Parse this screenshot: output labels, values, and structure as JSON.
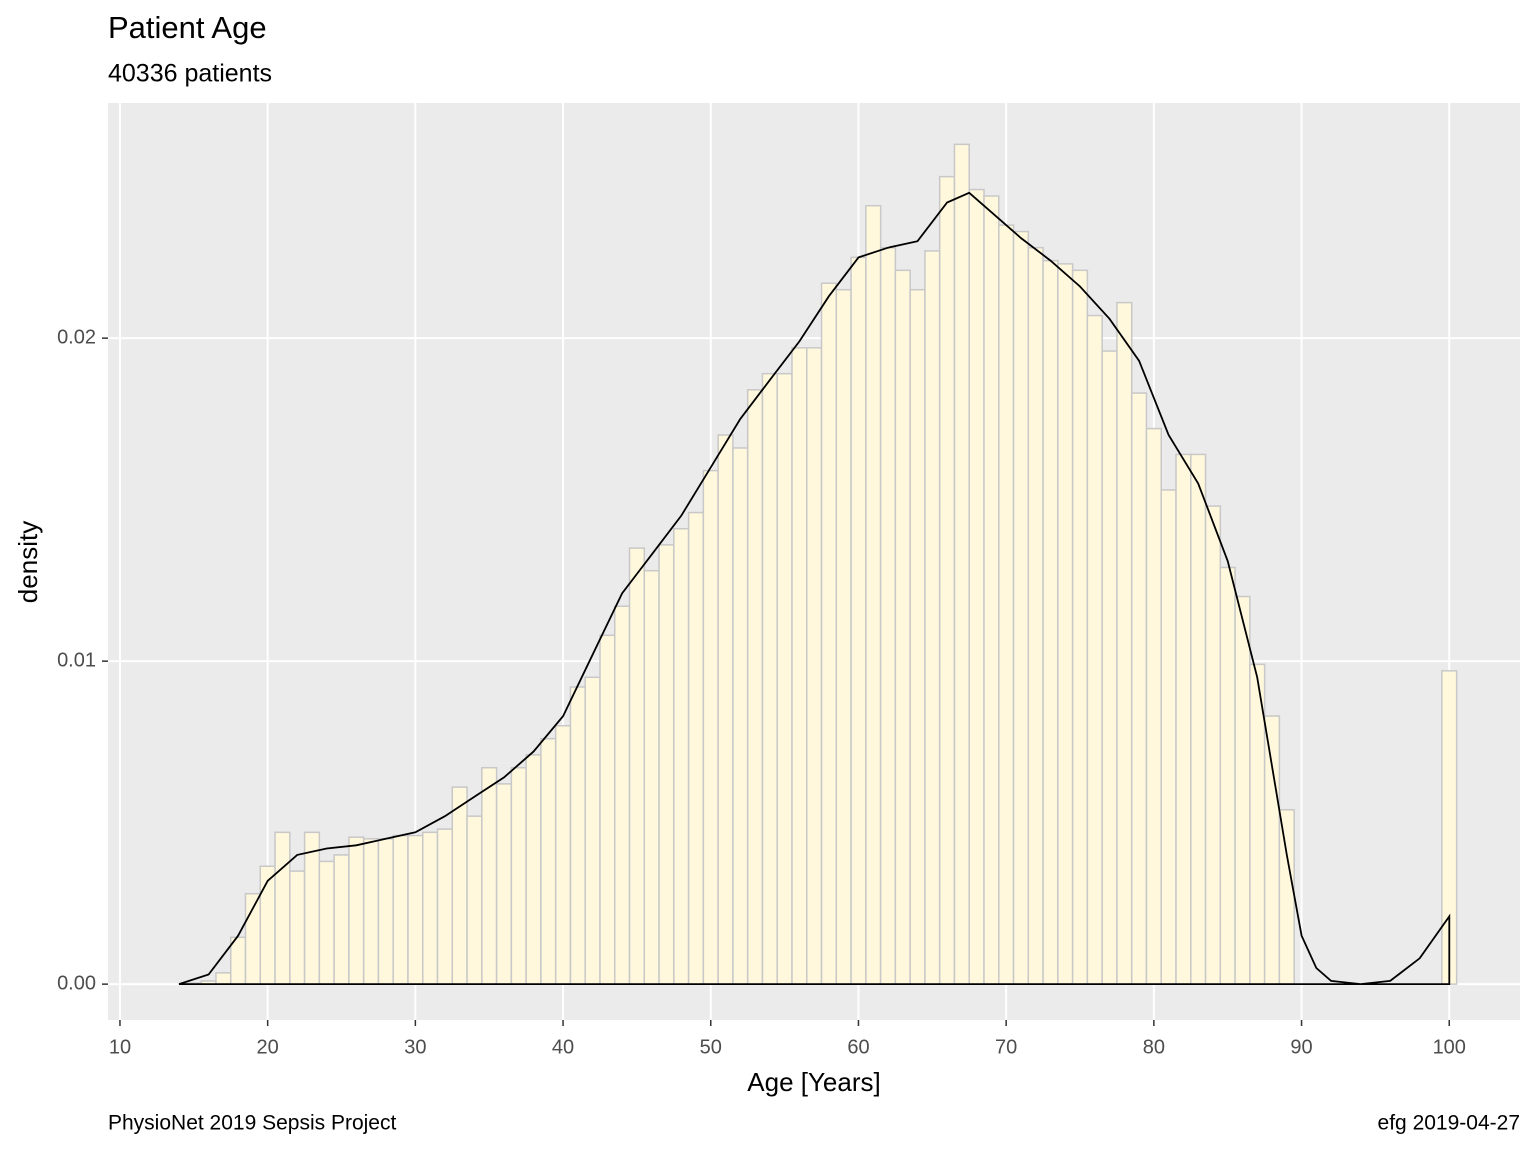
{
  "chart_data": {
    "type": "histogram",
    "title": "Patient Age",
    "subtitle": "40336 patients",
    "x_label": "Age [Years]",
    "y_label": "density",
    "caption_left": "PhysioNet 2019 Sepsis Project",
    "caption_right": "efg 2019-04-27",
    "bins": [
      14.5,
      15.5,
      16.5,
      17.5,
      18.5,
      19.5,
      20.5,
      21.5,
      22.5,
      23.5,
      24.5,
      25.5,
      26.5,
      27.5,
      28.5,
      29.5,
      30.5,
      31.5,
      32.5,
      33.5,
      34.5,
      35.5,
      36.5,
      37.5,
      38.5,
      39.5,
      40.5,
      41.5,
      42.5,
      43.5,
      44.5,
      45.5,
      46.5,
      47.5,
      48.5,
      49.5,
      50.5,
      51.5,
      52.5,
      53.5,
      54.5,
      55.5,
      56.5,
      57.5,
      58.5,
      59.5,
      60.5,
      61.5,
      62.5,
      63.5,
      64.5,
      65.5,
      66.5,
      67.5,
      68.5,
      69.5,
      70.5,
      71.5,
      72.5,
      73.5,
      74.5,
      75.5,
      76.5,
      77.5,
      78.5,
      79.5,
      80.5,
      81.5,
      82.5,
      83.5,
      84.5,
      85.5,
      86.5,
      87.5,
      88.5,
      89.5,
      90.5,
      91.5,
      92.5,
      93.5,
      94.5,
      95.5,
      96.5,
      97.5,
      98.5,
      99.5,
      100.5
    ],
    "values": [
      3e-05,
      0.0001,
      0.00035,
      0.00145,
      0.0028,
      0.00365,
      0.0047,
      0.0035,
      0.0047,
      0.0038,
      0.004,
      0.00455,
      0.0045,
      0.0045,
      0.0046,
      0.0046,
      0.0047,
      0.0048,
      0.0061,
      0.0052,
      0.0067,
      0.0062,
      0.0067,
      0.0071,
      0.0076,
      0.008,
      0.0092,
      0.0095,
      0.0108,
      0.0117,
      0.0135,
      0.0128,
      0.0136,
      0.0141,
      0.0146,
      0.0159,
      0.017,
      0.0166,
      0.0184,
      0.0189,
      0.0189,
      0.0197,
      0.0197,
      0.0217,
      0.0215,
      0.0225,
      0.0241,
      0.0228,
      0.0221,
      0.0215,
      0.0227,
      0.025,
      0.026,
      0.0246,
      0.0244,
      0.0235,
      0.0233,
      0.0228,
      0.0224,
      0.0223,
      0.0221,
      0.0207,
      0.0196,
      0.0211,
      0.0183,
      0.0172,
      0.0153,
      0.0164,
      0.0164,
      0.0148,
      0.0129,
      0.012,
      0.0099,
      0.0083,
      0.0054,
      0,
      0,
      0,
      0,
      0,
      0,
      0,
      0,
      0,
      0,
      0.0097
    ],
    "fill": "#fff8dc",
    "edge_color": "#c8c8c8",
    "density": {
      "color": "#000000",
      "x": [
        14,
        16,
        18,
        20,
        22,
        24,
        26,
        28,
        30,
        32,
        34,
        36,
        38,
        40,
        42,
        44,
        46,
        48,
        50,
        52,
        54,
        56,
        58,
        60,
        62,
        64,
        66,
        67.5,
        69,
        71,
        73,
        75,
        77,
        79,
        81,
        83,
        85,
        87,
        89,
        90,
        91,
        92,
        94,
        96,
        98,
        100
      ],
      "y": [
        0,
        0.0003,
        0.0015,
        0.0032,
        0.004,
        0.0042,
        0.0043,
        0.0045,
        0.0047,
        0.0052,
        0.0058,
        0.0064,
        0.0072,
        0.0083,
        0.0102,
        0.0121,
        0.0133,
        0.0145,
        0.016,
        0.0175,
        0.0187,
        0.0199,
        0.0213,
        0.0225,
        0.0228,
        0.023,
        0.0242,
        0.0245,
        0.0239,
        0.0231,
        0.0224,
        0.0216,
        0.0206,
        0.0193,
        0.017,
        0.0155,
        0.0131,
        0.0095,
        0.004,
        0.0015,
        0.0005,
        0.0001,
        0,
        0.0001,
        0.0008,
        0.0021
      ]
    },
    "xlim": [
      9.19,
      104.79
    ],
    "ylim": [
      -0.00111,
      0.02728
    ],
    "xticks": [
      10,
      20,
      30,
      40,
      50,
      60,
      70,
      80,
      90,
      100
    ],
    "yticks": [
      {
        "value": 0,
        "label": "0.00"
      },
      {
        "value": 0.01,
        "label": "0.01"
      },
      {
        "value": 0.02,
        "label": "0.02"
      }
    ],
    "grid": true,
    "panel_color": "#ebebeb"
  }
}
